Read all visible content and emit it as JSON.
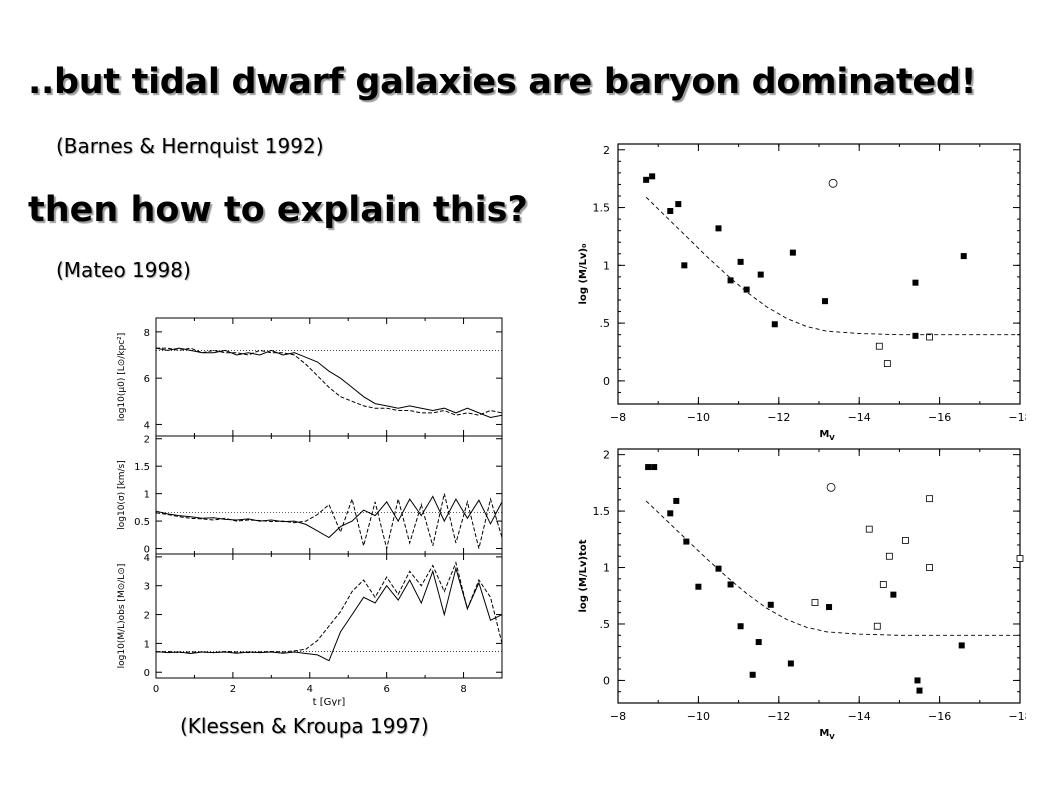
{
  "slide": {
    "title": "..but tidal dwarf galaxies are baryon dominated!",
    "cite1": "(Barnes & Hernquist 1992)",
    "question": "then how to explain this?",
    "cite2": "(Mateo 1998)",
    "cite3": "(Klessen & Kroupa 1997)"
  },
  "chart_data": [
    {
      "type": "scatter",
      "id": "mateo-top",
      "xlabel": "Mv",
      "ylabel": "log (M/Lv)₀",
      "xlim": [
        -8,
        -18
      ],
      "ylim": [
        -0.2,
        2.05
      ],
      "xticks": [
        -8,
        -10,
        -12,
        -14,
        -16,
        -18
      ],
      "xtick_labels": [
        "−8",
        "−10",
        "−12",
        "−14",
        "−16",
        "−18"
      ],
      "yticks": [
        0,
        0.5,
        1,
        1.5,
        2
      ],
      "ytick_labels": [
        "0",
        ".5",
        "1",
        "1.5",
        "2"
      ],
      "series": [
        {
          "marker": "filled-square",
          "points": [
            [
              -8.7,
              1.74
            ],
            [
              -8.85,
              1.77
            ],
            [
              -9.3,
              1.47
            ],
            [
              -9.5,
              1.53
            ],
            [
              -9.65,
              1.0
            ],
            [
              -10.5,
              1.32
            ],
            [
              -10.8,
              0.87
            ],
            [
              -11.05,
              1.03
            ],
            [
              -11.2,
              0.79
            ],
            [
              -11.55,
              0.92
            ],
            [
              -11.9,
              0.49
            ],
            [
              -12.35,
              1.11
            ],
            [
              -13.15,
              0.69
            ],
            [
              -15.4,
              0.85
            ],
            [
              -15.4,
              0.39
            ],
            [
              -16.6,
              1.08
            ]
          ]
        },
        {
          "marker": "open-square",
          "points": [
            [
              -14.5,
              0.3
            ],
            [
              -14.7,
              0.15
            ],
            [
              -15.75,
              0.38
            ]
          ]
        },
        {
          "marker": "open-circle",
          "points": [
            [
              -13.35,
              1.71
            ]
          ]
        },
        {
          "line": "dashed",
          "points": [
            [
              -8.7,
              1.59
            ],
            [
              -9.2,
              1.42
            ],
            [
              -9.7,
              1.25
            ],
            [
              -10.2,
              1.08
            ],
            [
              -10.7,
              0.92
            ],
            [
              -11.2,
              0.77
            ],
            [
              -11.7,
              0.64
            ],
            [
              -12.2,
              0.54
            ],
            [
              -12.7,
              0.47
            ],
            [
              -13.2,
              0.43
            ],
            [
              -14,
              0.41
            ],
            [
              -15,
              0.4
            ],
            [
              -16,
              0.4
            ],
            [
              -17,
              0.4
            ],
            [
              -18,
              0.4
            ]
          ]
        }
      ]
    },
    {
      "type": "scatter",
      "id": "mateo-bottom",
      "xlabel": "Mv",
      "ylabel": "log (M/Lv)tot",
      "xlim": [
        -8,
        -18
      ],
      "ylim": [
        -0.2,
        2.05
      ],
      "xticks": [
        -8,
        -10,
        -12,
        -14,
        -16,
        -18
      ],
      "xtick_labels": [
        "−8",
        "−10",
        "−12",
        "−14",
        "−16",
        "−18"
      ],
      "yticks": [
        0,
        0.5,
        1,
        1.5,
        2
      ],
      "ytick_labels": [
        "0",
        ".5",
        "1",
        "1.5",
        "2"
      ],
      "series": [
        {
          "marker": "filled-square",
          "points": [
            [
              -8.75,
              1.89
            ],
            [
              -8.9,
              1.89
            ],
            [
              -9.3,
              1.48
            ],
            [
              -9.45,
              1.59
            ],
            [
              -9.7,
              1.23
            ],
            [
              -10,
              0.83
            ],
            [
              -10.5,
              0.99
            ],
            [
              -10.8,
              0.85
            ],
            [
              -11.05,
              0.48
            ],
            [
              -11.35,
              0.05
            ],
            [
              -11.5,
              0.34
            ],
            [
              -11.8,
              0.67
            ],
            [
              -12.3,
              0.15
            ],
            [
              -13.25,
              0.65
            ],
            [
              -14.85,
              0.76
            ],
            [
              -15.45,
              0.0
            ],
            [
              -15.5,
              -0.09
            ],
            [
              -16.55,
              0.31
            ]
          ]
        },
        {
          "marker": "open-square",
          "points": [
            [
              -12.9,
              0.69
            ],
            [
              -14.25,
              1.34
            ],
            [
              -14.45,
              0.48
            ],
            [
              -14.6,
              0.85
            ],
            [
              -14.75,
              1.1
            ],
            [
              -15.15,
              1.24
            ],
            [
              -15.75,
              1.61
            ],
            [
              -15.75,
              1.0
            ],
            [
              -18,
              1.08
            ]
          ]
        },
        {
          "marker": "open-circle",
          "points": [
            [
              -13.3,
              1.71
            ]
          ]
        },
        {
          "line": "dashed",
          "points": [
            [
              -8.7,
              1.59
            ],
            [
              -9.2,
              1.42
            ],
            [
              -9.7,
              1.25
            ],
            [
              -10.2,
              1.08
            ],
            [
              -10.7,
              0.92
            ],
            [
              -11.2,
              0.77
            ],
            [
              -11.7,
              0.64
            ],
            [
              -12.2,
              0.54
            ],
            [
              -12.7,
              0.47
            ],
            [
              -13.2,
              0.43
            ],
            [
              -14,
              0.41
            ],
            [
              -15,
              0.4
            ],
            [
              -16,
              0.4
            ],
            [
              -17,
              0.4
            ],
            [
              -18,
              0.4
            ]
          ]
        }
      ]
    },
    {
      "type": "line",
      "id": "klessen-mu",
      "ylabel": "log10(μ0) [L⊙/kpc²]",
      "xlim": [
        0,
        9
      ],
      "ylim": [
        3.5,
        8.6
      ],
      "yticks": [
        4,
        6,
        8
      ],
      "ytick_labels": [
        "4",
        "6",
        "8"
      ],
      "reference": 7.2,
      "series": [
        {
          "name": "solid",
          "x": [
            0,
            0.3,
            0.6,
            0.9,
            1.2,
            1.5,
            1.8,
            2.1,
            2.4,
            2.7,
            3.0,
            3.3,
            3.6,
            3.9,
            4.2,
            4.5,
            4.8,
            5.1,
            5.4,
            5.7,
            6.0,
            6.3,
            6.6,
            6.9,
            7.2,
            7.5,
            7.8,
            8.1,
            8.4,
            8.7,
            9.0
          ],
          "y": [
            7.3,
            7.2,
            7.3,
            7.2,
            7.1,
            7.1,
            7.2,
            7.0,
            7.1,
            7.0,
            7.2,
            7.0,
            7.1,
            6.9,
            6.7,
            6.3,
            6.0,
            5.6,
            5.2,
            4.9,
            4.8,
            4.7,
            4.8,
            4.7,
            4.6,
            4.7,
            4.5,
            4.7,
            4.5,
            4.3,
            4.4
          ]
        },
        {
          "name": "dashed",
          "x": [
            0,
            0.3,
            0.6,
            0.9,
            1.2,
            1.5,
            1.8,
            2.1,
            2.4,
            2.7,
            3.0,
            3.3,
            3.6,
            3.9,
            4.2,
            4.5,
            4.8,
            5.1,
            5.4,
            5.7,
            6.0,
            6.3,
            6.6,
            6.9,
            7.2,
            7.5,
            7.8,
            8.1,
            8.4,
            8.7,
            9.0
          ],
          "y": [
            7.3,
            7.3,
            7.2,
            7.3,
            7.1,
            7.2,
            7.1,
            7.1,
            7.0,
            7.2,
            7.1,
            7.1,
            7.0,
            6.6,
            6.1,
            5.6,
            5.2,
            5.0,
            4.8,
            4.7,
            4.7,
            4.6,
            4.6,
            4.5,
            4.5,
            4.6,
            4.4,
            4.5,
            4.4,
            4.6,
            4.5
          ]
        }
      ]
    },
    {
      "type": "line",
      "id": "klessen-sigma",
      "ylabel": "log10(σ) [km/s]",
      "xlim": [
        0,
        9
      ],
      "ylim": [
        -0.1,
        2.05
      ],
      "yticks": [
        0,
        0.5,
        1,
        1.5,
        2
      ],
      "ytick_labels": [
        "0",
        "0.5",
        "1",
        "1.5",
        "2"
      ],
      "reference": 0.66,
      "series": [
        {
          "name": "solid",
          "x": [
            0,
            0.3,
            0.6,
            0.9,
            1.2,
            1.5,
            1.8,
            2.1,
            2.4,
            2.7,
            3.0,
            3.3,
            3.6,
            3.9,
            4.2,
            4.5,
            4.8,
            5.1,
            5.4,
            5.7,
            6.0,
            6.3,
            6.6,
            6.9,
            7.2,
            7.5,
            7.8,
            8.1,
            8.4,
            8.7,
            9.0
          ],
          "y": [
            0.68,
            0.63,
            0.6,
            0.58,
            0.55,
            0.56,
            0.53,
            0.52,
            0.54,
            0.5,
            0.52,
            0.49,
            0.5,
            0.44,
            0.32,
            0.2,
            0.4,
            0.5,
            0.7,
            0.6,
            0.85,
            0.5,
            0.9,
            0.6,
            0.95,
            0.5,
            0.9,
            0.55,
            0.88,
            0.45,
            0.85
          ]
        },
        {
          "name": "dashed",
          "x": [
            0,
            0.3,
            0.6,
            0.9,
            1.2,
            1.5,
            1.8,
            2.1,
            2.4,
            2.7,
            3.0,
            3.3,
            3.6,
            3.9,
            4.2,
            4.5,
            4.8,
            5.1,
            5.4,
            5.7,
            6.0,
            6.3,
            6.6,
            6.9,
            7.2,
            7.5,
            7.8,
            8.1,
            8.4,
            8.7,
            9.0
          ],
          "y": [
            0.65,
            0.62,
            0.58,
            0.55,
            0.54,
            0.52,
            0.55,
            0.5,
            0.52,
            0.51,
            0.49,
            0.5,
            0.47,
            0.5,
            0.62,
            0.8,
            0.3,
            0.9,
            0.05,
            0.85,
            0.0,
            0.9,
            0.1,
            0.8,
            0.05,
            1.0,
            0.1,
            0.85,
            0.0,
            0.9,
            0.2
          ]
        }
      ]
    },
    {
      "type": "line",
      "id": "klessen-ml",
      "xlabel": "t [Gyr]",
      "ylabel": "log10(M/L)obs [M⊙/L⊙]",
      "xlim": [
        0,
        9
      ],
      "ylim": [
        -0.2,
        4.1
      ],
      "xticks": [
        0,
        2,
        4,
        6,
        8
      ],
      "xtick_labels": [
        "0",
        "2",
        "4",
        "6",
        "8"
      ],
      "yticks": [
        0,
        1,
        2,
        3,
        4
      ],
      "ytick_labels": [
        "0",
        "1",
        "2",
        "3",
        "4"
      ],
      "reference": 0.72,
      "series": [
        {
          "name": "solid",
          "x": [
            0,
            0.3,
            0.6,
            0.9,
            1.2,
            1.5,
            1.8,
            2.1,
            2.4,
            2.7,
            3.0,
            3.3,
            3.6,
            3.9,
            4.2,
            4.5,
            4.8,
            5.1,
            5.4,
            5.7,
            6.0,
            6.3,
            6.6,
            6.9,
            7.2,
            7.5,
            7.8,
            8.1,
            8.4,
            8.7,
            9.0
          ],
          "y": [
            0.72,
            0.68,
            0.7,
            0.65,
            0.7,
            0.68,
            0.7,
            0.66,
            0.7,
            0.68,
            0.7,
            0.66,
            0.7,
            0.65,
            0.6,
            0.4,
            1.4,
            2.0,
            2.6,
            2.4,
            3.0,
            2.5,
            3.2,
            2.4,
            3.5,
            2.0,
            3.6,
            2.2,
            3.1,
            1.8,
            2.0
          ]
        },
        {
          "name": "dashed",
          "x": [
            0,
            0.3,
            0.6,
            0.9,
            1.2,
            1.5,
            1.8,
            2.1,
            2.4,
            2.7,
            3.0,
            3.3,
            3.6,
            3.9,
            4.2,
            4.5,
            4.8,
            5.1,
            5.4,
            5.7,
            6.0,
            6.3,
            6.6,
            6.9,
            7.2,
            7.5,
            7.8,
            8.1,
            8.4,
            8.7,
            9.0
          ],
          "y": [
            0.7,
            0.72,
            0.68,
            0.7,
            0.7,
            0.68,
            0.72,
            0.7,
            0.68,
            0.7,
            0.72,
            0.7,
            0.74,
            0.8,
            1.1,
            1.6,
            2.1,
            2.8,
            3.2,
            2.6,
            3.3,
            2.7,
            3.5,
            3.0,
            3.7,
            2.8,
            3.8,
            2.2,
            3.2,
            2.6,
            1.0
          ]
        }
      ]
    }
  ]
}
